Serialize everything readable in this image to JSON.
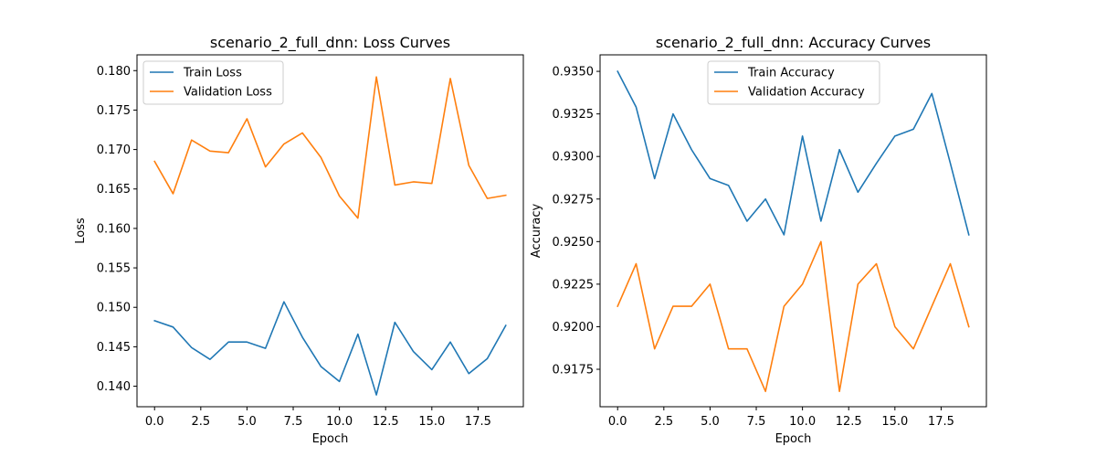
{
  "chart_data": [
    {
      "type": "line",
      "title": "scenario_2_full_dnn: Loss Curves",
      "xlabel": "Epoch",
      "ylabel": "Loss",
      "xlim": [
        -0.95,
        19.95
      ],
      "ylim": [
        0.1374,
        0.182
      ],
      "xticks": [
        0.0,
        2.5,
        5.0,
        7.5,
        10.0,
        12.5,
        15.0,
        17.5
      ],
      "xtick_labels": [
        "0.0",
        "2.5",
        "5.0",
        "7.5",
        "10.0",
        "12.5",
        "15.0",
        "17.5"
      ],
      "yticks": [
        0.14,
        0.145,
        0.15,
        0.155,
        0.16,
        0.165,
        0.17,
        0.175,
        0.18
      ],
      "ytick_labels": [
        "0.140",
        "0.145",
        "0.150",
        "0.155",
        "0.160",
        "0.165",
        "0.170",
        "0.175",
        "0.180"
      ],
      "legend_position": "top-left",
      "grid": false,
      "x": [
        0,
        1,
        2,
        3,
        4,
        5,
        6,
        7,
        8,
        9,
        10,
        11,
        12,
        13,
        14,
        15,
        16,
        17,
        18,
        19
      ],
      "series": [
        {
          "name": "Train Loss",
          "color": "#1f77b4",
          "values": [
            0.1483,
            0.1475,
            0.1449,
            0.1434,
            0.1456,
            0.1456,
            0.1448,
            0.1507,
            0.1462,
            0.1425,
            0.1406,
            0.1466,
            0.1389,
            0.1481,
            0.1444,
            0.1421,
            0.1456,
            0.1416,
            0.1435,
            0.1477
          ]
        },
        {
          "name": "Validation Loss",
          "color": "#ff7f0e",
          "values": [
            0.1685,
            0.1644,
            0.1712,
            0.1698,
            0.1696,
            0.1739,
            0.1678,
            0.1707,
            0.1721,
            0.169,
            0.1641,
            0.1613,
            0.1792,
            0.1655,
            0.1659,
            0.1657,
            0.179,
            0.168,
            0.1638,
            0.1642
          ]
        }
      ]
    },
    {
      "type": "line",
      "title": "scenario_2_full_dnn: Accuracy Curves",
      "xlabel": "Epoch",
      "ylabel": "Accuracy",
      "xlim": [
        -0.95,
        19.95
      ],
      "ylim": [
        0.9153,
        0.93597
      ],
      "xticks": [
        0.0,
        2.5,
        5.0,
        7.5,
        10.0,
        12.5,
        15.0,
        17.5
      ],
      "xtick_labels": [
        "0.0",
        "2.5",
        "5.0",
        "7.5",
        "10.0",
        "12.5",
        "15.0",
        "17.5"
      ],
      "yticks": [
        0.9175,
        0.92,
        0.9225,
        0.925,
        0.9275,
        0.93,
        0.9325,
        0.935
      ],
      "ytick_labels": [
        "0.9175",
        "0.9200",
        "0.9225",
        "0.9250",
        "0.9275",
        "0.9300",
        "0.9325",
        "0.9350"
      ],
      "legend_position": "top-center",
      "grid": false,
      "x": [
        0,
        1,
        2,
        3,
        4,
        5,
        6,
        7,
        8,
        9,
        10,
        11,
        12,
        13,
        14,
        15,
        16,
        17,
        18,
        19
      ],
      "series": [
        {
          "name": "Train Accuracy",
          "color": "#1f77b4",
          "values": [
            0.935,
            0.9329,
            0.9287,
            0.9325,
            0.9304,
            0.9287,
            0.9283,
            0.9262,
            0.9275,
            0.9254,
            0.9312,
            0.9262,
            0.9304,
            0.9279,
            0.9296,
            0.9312,
            0.9316,
            0.9337,
            0.9296,
            0.9254
          ]
        },
        {
          "name": "Validation Accuracy",
          "color": "#ff7f0e",
          "values": [
            0.9212,
            0.9237,
            0.9187,
            0.9212,
            0.9212,
            0.9225,
            0.9187,
            0.9187,
            0.9162,
            0.9212,
            0.9225,
            0.925,
            0.9162,
            0.9225,
            0.9237,
            0.92,
            0.9187,
            0.9212,
            0.9237,
            0.92
          ]
        }
      ]
    }
  ]
}
